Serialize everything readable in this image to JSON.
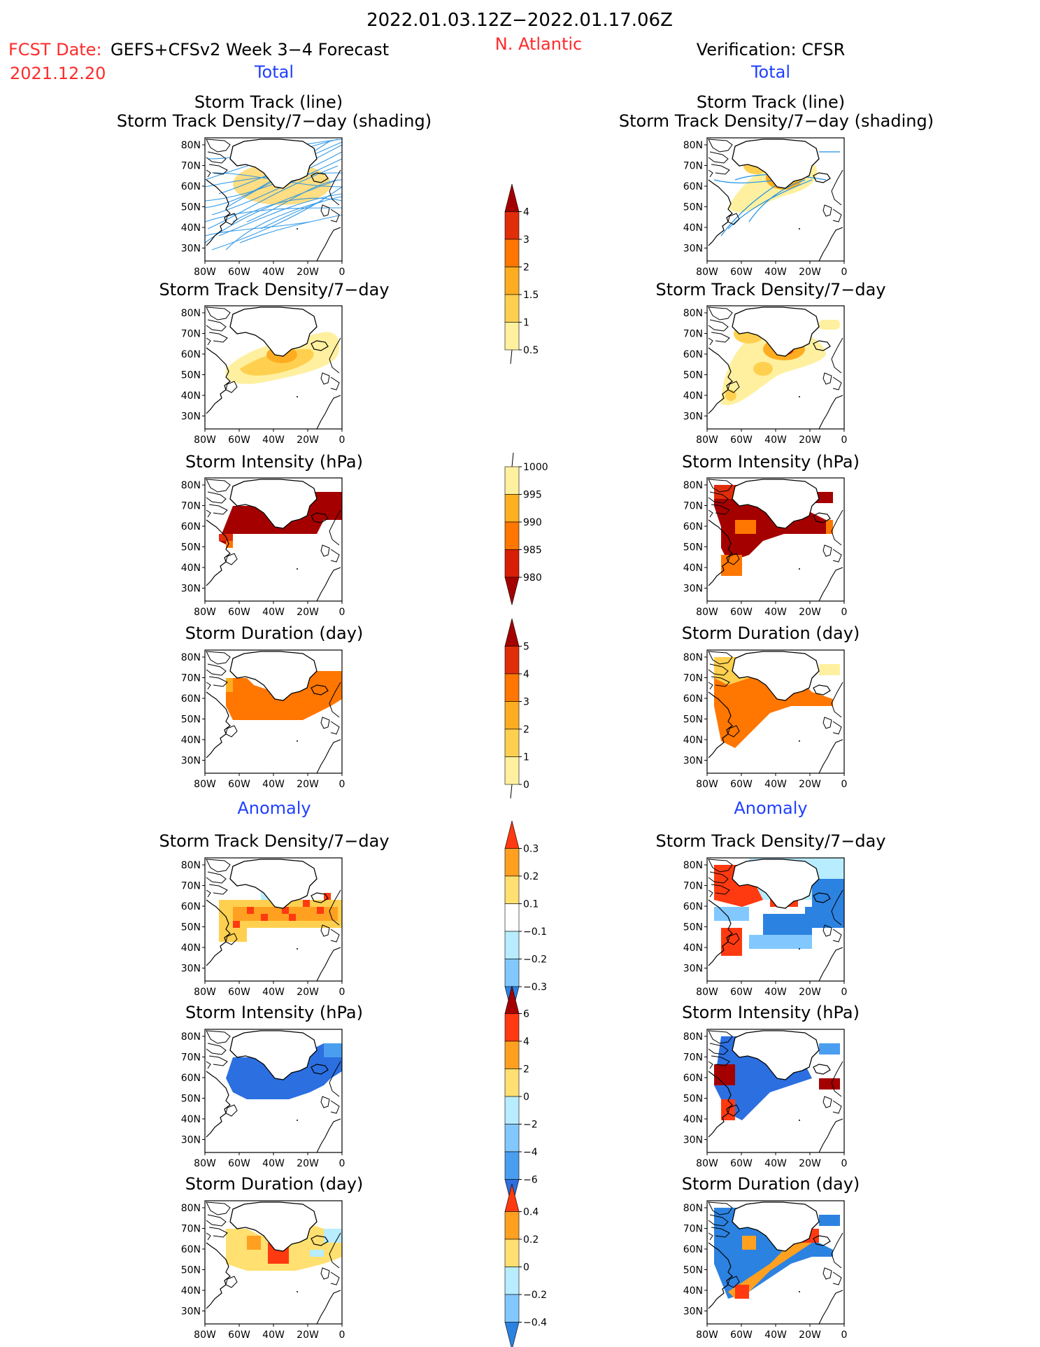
{
  "header": {
    "title": "2022.01.03.12Z−2022.01.17.06Z",
    "fcst_date_label": "FCST Date:",
    "fcst_date": "2021.12.20",
    "model": "GEFS+CFSv2 Week 3−4 Forecast",
    "region": "N. Atlantic",
    "verification": "Verification: CFSR"
  },
  "sections": {
    "total_left": "Total",
    "total_right": "Total",
    "anomaly_left": "Anomaly",
    "anomaly_right": "Anomaly"
  },
  "colors": {
    "red_text": "#ff2b2b",
    "blue_text": "#1f3fff",
    "track_blue": "#1e90e6",
    "coast": "#000000"
  },
  "axes": {
    "lat_ticks": [
      "80N",
      "70N",
      "60N",
      "50N",
      "40N",
      "30N"
    ],
    "lon_ticks": [
      "80W",
      "60W",
      "40W",
      "20W",
      "0"
    ]
  },
  "panels": {
    "p1_title_a": "Storm Track (line)",
    "p1_title_b": "Storm Track Density/7−day (shading)",
    "p2_title": "Storm Track Density/7−day",
    "p3_title": "Storm Intensity (hPa)",
    "p4_title": "Storm Duration (day)",
    "p5_title": "Storm Track Density/7−day",
    "p6_title": "Storm Intensity (hPa)",
    "p7_title": "Storm Duration (day)"
  },
  "colorbars": {
    "density": {
      "labels": [
        "4",
        "3",
        "2",
        "1.5",
        "1",
        "0.5"
      ],
      "colors": [
        "#a50000",
        "#e02d0a",
        "#ff7600",
        "#ffad20",
        "#ffd050",
        "#fff0a0"
      ]
    },
    "intensity": {
      "labels": [
        "1000",
        "995",
        "990",
        "985",
        "980"
      ],
      "colors": [
        "#fff0a0",
        "#ffb020",
        "#ff7600",
        "#d81e05",
        "#a50000"
      ]
    },
    "duration": {
      "labels": [
        "5",
        "4",
        "3",
        "2",
        "1",
        "0"
      ],
      "colors": [
        "#a50000",
        "#e02d0a",
        "#ff7600",
        "#ffad20",
        "#ffd050",
        "#fff0a0"
      ]
    },
    "density_anom": {
      "labels": [
        "0.3",
        "0.2",
        "0.1",
        "−0.1",
        "−0.2",
        "−0.3"
      ],
      "colors": [
        "#ff3a10",
        "#ffa020",
        "#ffe070",
        "#ffffff",
        "#b8ecff",
        "#82c8ff",
        "#2c82e0"
      ]
    },
    "intensity_anom": {
      "labels": [
        "6",
        "4",
        "2",
        "0",
        "−2",
        "−4",
        "−6"
      ],
      "colors": [
        "#a50000",
        "#ff3a10",
        "#ffa020",
        "#ffe070",
        "#b8ecff",
        "#82c8ff",
        "#4a9ef0",
        "#2c6fe0"
      ]
    },
    "duration_anom": {
      "labels": [
        "0.4",
        "0.2",
        "0",
        "−0.2",
        "−0.4"
      ],
      "colors": [
        "#ff3a10",
        "#ffa020",
        "#ffe070",
        "#b8ecff",
        "#82c8ff",
        "#2c82e0"
      ]
    }
  }
}
